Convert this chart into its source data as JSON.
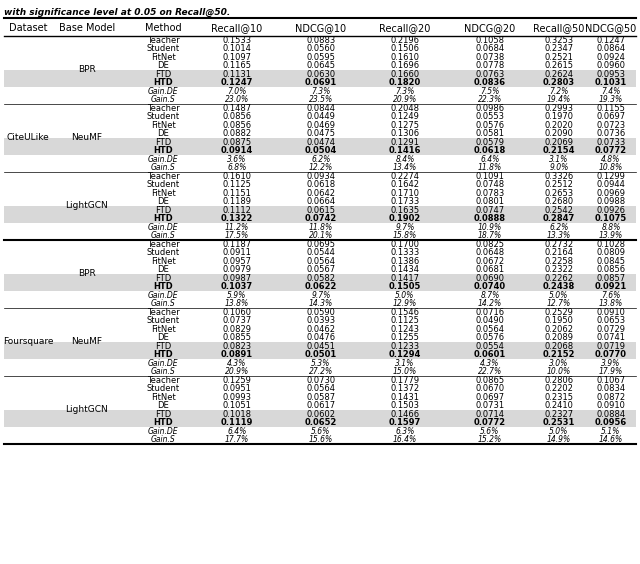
{
  "title": "with significance level at 0.05 on Recall@50.",
  "headers": [
    "Dataset",
    "Base Model",
    "Method",
    "Recall@10",
    "NDCG@10",
    "Recall@20",
    "NDCG@20",
    "Recall@50",
    "NDCG@50"
  ],
  "datasets": [
    {
      "name": "CiteULike",
      "base_models": [
        {
          "name": "BPR",
          "rows": [
            {
              "method": "Teacher",
              "style": "normal",
              "values": [
                "0.1533",
                "0.0883",
                "0.2196",
                "0.1058",
                "0.3253",
                "0.1247"
              ]
            },
            {
              "method": "Student",
              "style": "normal",
              "values": [
                "0.1014",
                "0.0560",
                "0.1506",
                "0.0684",
                "0.2347",
                "0.0864"
              ]
            },
            {
              "method": "FitNet",
              "style": "normal",
              "values": [
                "0.1097",
                "0.0595",
                "0.1610",
                "0.0738",
                "0.2521",
                "0.0924"
              ]
            },
            {
              "method": "DE",
              "style": "normal",
              "values": [
                "0.1165",
                "0.0645",
                "0.1696",
                "0.0778",
                "0.2615",
                "0.0960"
              ]
            },
            {
              "method": "FTD",
              "style": "normal",
              "values": [
                "0.1131",
                "0.0630",
                "0.1660",
                "0.0763",
                "0.2624",
                "0.0953"
              ]
            },
            {
              "method": "HTD",
              "style": "bold",
              "values": [
                "0.1247",
                "0.0691",
                "0.1820",
                "0.0836",
                "0.2803",
                "0.1031"
              ]
            },
            {
              "method": "Gain.DE",
              "style": "italic",
              "values": [
                "7.0%",
                "7.3%",
                "7.3%",
                "7.5%",
                "7.2%",
                "7.4%"
              ]
            },
            {
              "method": "Gain.S",
              "style": "italic",
              "values": [
                "23.0%",
                "23.5%",
                "20.9%",
                "22.3%",
                "19.4%",
                "19.3%"
              ]
            }
          ]
        },
        {
          "name": "NeuMF",
          "rows": [
            {
              "method": "Teacher",
              "style": "normal",
              "values": [
                "0.1487",
                "0.0844",
                "0.2048",
                "0.0986",
                "0.2993",
                "0.1155"
              ]
            },
            {
              "method": "Student",
              "style": "normal",
              "values": [
                "0.0856",
                "0.0449",
                "0.1249",
                "0.0553",
                "0.1970",
                "0.0697"
              ]
            },
            {
              "method": "FitNet",
              "style": "normal",
              "values": [
                "0.0856",
                "0.0469",
                "0.1275",
                "0.0576",
                "0.2020",
                "0.0723"
              ]
            },
            {
              "method": "DE",
              "style": "normal",
              "values": [
                "0.0882",
                "0.0475",
                "0.1306",
                "0.0581",
                "0.2090",
                "0.0736"
              ]
            },
            {
              "method": "FTD",
              "style": "normal",
              "values": [
                "0.0875",
                "0.0474",
                "0.1291",
                "0.0579",
                "0.2069",
                "0.0733"
              ]
            },
            {
              "method": "HTD",
              "style": "bold",
              "values": [
                "0.0914",
                "0.0504",
                "0.1416",
                "0.0618",
                "0.2154",
                "0.0772"
              ]
            },
            {
              "method": "Gain.DE",
              "style": "italic",
              "values": [
                "3.6%",
                "6.2%",
                "8.4%",
                "6.4%",
                "3.1%",
                "4.8%"
              ]
            },
            {
              "method": "Gain.S",
              "style": "italic",
              "values": [
                "6.8%",
                "12.2%",
                "13.4%",
                "11.8%",
                "9.0%",
                "10.8%"
              ]
            }
          ]
        },
        {
          "name": "LightGCN",
          "rows": [
            {
              "method": "Teacher",
              "style": "normal",
              "values": [
                "0.1610",
                "0.0934",
                "0.2274",
                "0.1091",
                "0.3326",
                "0.1299"
              ]
            },
            {
              "method": "Student",
              "style": "normal",
              "values": [
                "0.1125",
                "0.0618",
                "0.1642",
                "0.0748",
                "0.2512",
                "0.0944"
              ]
            },
            {
              "method": "FitNet",
              "style": "normal",
              "values": [
                "0.1151",
                "0.0642",
                "0.1710",
                "0.0783",
                "0.2653",
                "0.0969"
              ]
            },
            {
              "method": "DE",
              "style": "normal",
              "values": [
                "0.1189",
                "0.0664",
                "0.1733",
                "0.0801",
                "0.2680",
                "0.0988"
              ]
            },
            {
              "method": "FTD",
              "style": "normal",
              "values": [
                "0.1112",
                "0.0615",
                "0.1635",
                "0.0747",
                "0.2542",
                "0.0926"
              ]
            },
            {
              "method": "HTD",
              "style": "bold",
              "values": [
                "0.1322",
                "0.0742",
                "0.1902",
                "0.0888",
                "0.2847",
                "0.1075"
              ]
            },
            {
              "method": "Gain.DE",
              "style": "italic",
              "values": [
                "11.2%",
                "11.8%",
                "9.7%",
                "10.9%",
                "6.2%",
                "8.8%"
              ]
            },
            {
              "method": "Gain.S",
              "style": "italic",
              "values": [
                "17.5%",
                "20.1%",
                "15.8%",
                "18.7%",
                "13.3%",
                "13.9%"
              ]
            }
          ]
        }
      ]
    },
    {
      "name": "Foursquare",
      "base_models": [
        {
          "name": "BPR",
          "rows": [
            {
              "method": "Teacher",
              "style": "normal",
              "values": [
                "0.1187",
                "0.0695",
                "0.1700",
                "0.0825",
                "0.2732",
                "0.1028"
              ]
            },
            {
              "method": "Student",
              "style": "normal",
              "values": [
                "0.0911",
                "0.0544",
                "0.1333",
                "0.0648",
                "0.2164",
                "0.0809"
              ]
            },
            {
              "method": "FitNet",
              "style": "normal",
              "values": [
                "0.0957",
                "0.0564",
                "0.1386",
                "0.0672",
                "0.2258",
                "0.0845"
              ]
            },
            {
              "method": "DE",
              "style": "normal",
              "values": [
                "0.0979",
                "0.0567",
                "0.1434",
                "0.0681",
                "0.2322",
                "0.0856"
              ]
            },
            {
              "method": "FTD",
              "style": "normal",
              "values": [
                "0.0987",
                "0.0582",
                "0.1417",
                "0.0690",
                "0.2262",
                "0.0857"
              ]
            },
            {
              "method": "HTD",
              "style": "bold",
              "values": [
                "0.1037",
                "0.0622",
                "0.1505",
                "0.0740",
                "0.2438",
                "0.0921"
              ]
            },
            {
              "method": "Gain.DE",
              "style": "italic",
              "values": [
                "5.9%",
                "9.7%",
                "5.0%",
                "8.7%",
                "5.0%",
                "7.6%"
              ]
            },
            {
              "method": "Gain.S",
              "style": "italic",
              "values": [
                "13.8%",
                "14.3%",
                "12.9%",
                "14.2%",
                "12.7%",
                "13.8%"
              ]
            }
          ]
        },
        {
          "name": "NeuMF",
          "rows": [
            {
              "method": "Teacher",
              "style": "normal",
              "values": [
                "0.1060",
                "0.0590",
                "0.1546",
                "0.0716",
                "0.2529",
                "0.0910"
              ]
            },
            {
              "method": "Student",
              "style": "normal",
              "values": [
                "0.0737",
                "0.0393",
                "0.1125",
                "0.0490",
                "0.1950",
                "0.0653"
              ]
            },
            {
              "method": "FitNet",
              "style": "normal",
              "values": [
                "0.0829",
                "0.0462",
                "0.1243",
                "0.0564",
                "0.2062",
                "0.0729"
              ]
            },
            {
              "method": "DE",
              "style": "normal",
              "values": [
                "0.0855",
                "0.0476",
                "0.1255",
                "0.0576",
                "0.2089",
                "0.0741"
              ]
            },
            {
              "method": "FTD",
              "style": "normal",
              "values": [
                "0.0823",
                "0.0451",
                "0.1233",
                "0.0554",
                "0.2068",
                "0.0719"
              ]
            },
            {
              "method": "HTD",
              "style": "bold",
              "values": [
                "0.0891",
                "0.0501",
                "0.1294",
                "0.0601",
                "0.2152",
                "0.0770"
              ]
            },
            {
              "method": "Gain.DE",
              "style": "italic",
              "values": [
                "4.3%",
                "5.3%",
                "3.1%",
                "4.3%",
                "3.0%",
                "3.9%"
              ]
            },
            {
              "method": "Gain.S",
              "style": "italic",
              "values": [
                "20.9%",
                "27.2%",
                "15.0%",
                "22.7%",
                "10.0%",
                "17.9%"
              ]
            }
          ]
        },
        {
          "name": "LightGCN",
          "rows": [
            {
              "method": "Teacher",
              "style": "normal",
              "values": [
                "0.1259",
                "0.0730",
                "0.1779",
                "0.0865",
                "0.2806",
                "0.1067"
              ]
            },
            {
              "method": "Student",
              "style": "normal",
              "values": [
                "0.0951",
                "0.0564",
                "0.1372",
                "0.0670",
                "0.2202",
                "0.0834"
              ]
            },
            {
              "method": "FitNet",
              "style": "normal",
              "values": [
                "0.0993",
                "0.0587",
                "0.1431",
                "0.0697",
                "0.2315",
                "0.0872"
              ]
            },
            {
              "method": "DE",
              "style": "normal",
              "values": [
                "0.1051",
                "0.0617",
                "0.1503",
                "0.0731",
                "0.2410",
                "0.0910"
              ]
            },
            {
              "method": "FTD",
              "style": "normal",
              "values": [
                "0.1018",
                "0.0602",
                "0.1466",
                "0.0714",
                "0.2327",
                "0.0884"
              ]
            },
            {
              "method": "HTD",
              "style": "bold",
              "values": [
                "0.1119",
                "0.0652",
                "0.1597",
                "0.0772",
                "0.2531",
                "0.0956"
              ]
            },
            {
              "method": "Gain.DE",
              "style": "italic",
              "values": [
                "6.4%",
                "5.6%",
                "6.3%",
                "5.6%",
                "5.0%",
                "5.1%"
              ]
            },
            {
              "method": "Gain.S",
              "style": "italic",
              "values": [
                "17.7%",
                "15.6%",
                "16.4%",
                "15.2%",
                "14.9%",
                "14.6%"
              ]
            }
          ]
        }
      ]
    }
  ]
}
